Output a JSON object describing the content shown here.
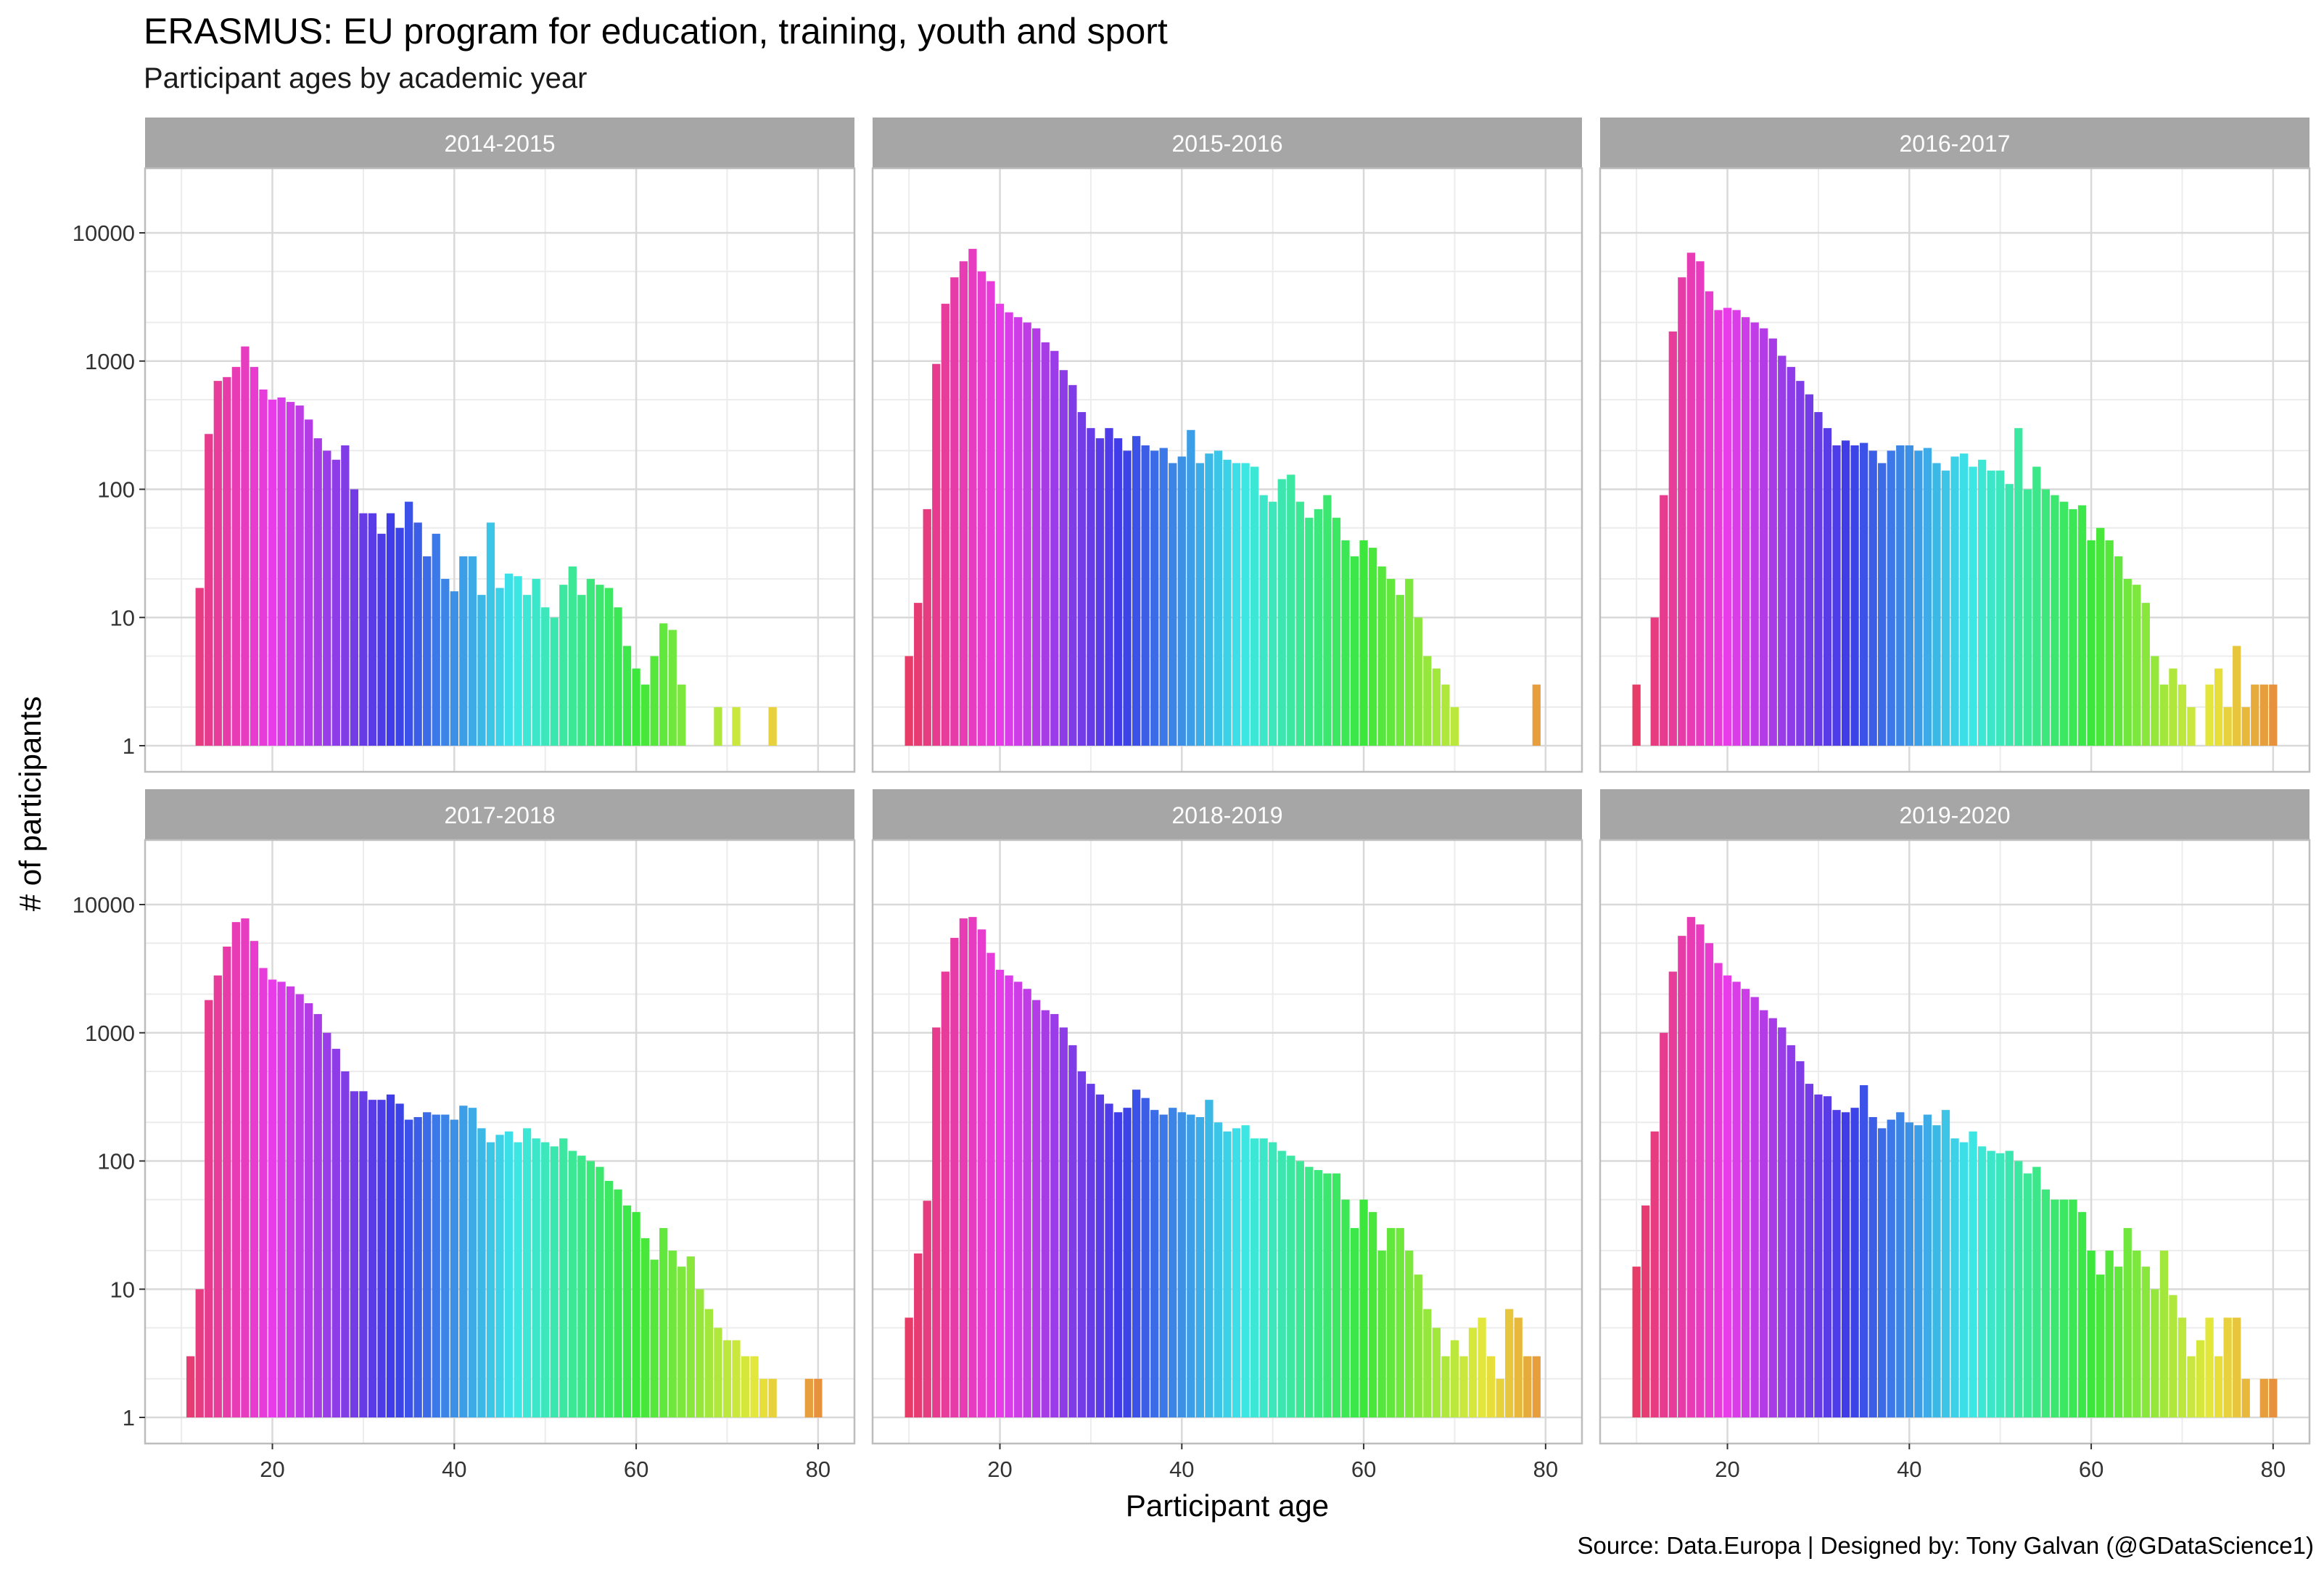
{
  "header": {
    "title": "ERASMUS: EU program for education, training, youth and sport",
    "subtitle": "Participant ages by academic year"
  },
  "caption": "Source: Data.Europa  |  Designed by: Tony Galvan (@GDataScience1)",
  "chart_data": {
    "type": "bar",
    "title": "ERASMUS: EU program for education, training, youth and sport",
    "subtitle": "Participant ages by academic year",
    "xlabel": "Participant age",
    "ylabel": "# of participants",
    "x_scale": "linear",
    "y_scale": "log10",
    "xlim": [
      6,
      84
    ],
    "ylim": [
      1,
      10000
    ],
    "x_ticks": [
      20,
      40,
      60,
      80
    ],
    "y_ticks": [
      1,
      10,
      100,
      1000,
      10000
    ],
    "grid": true,
    "color_encoding": "bar color varies continuously with participant age (hue gradient)",
    "facets": [
      {
        "label": "2014-2015",
        "x": [
          12,
          13,
          14,
          15,
          16,
          17,
          18,
          19,
          20,
          21,
          22,
          23,
          24,
          25,
          26,
          27,
          28,
          29,
          30,
          31,
          32,
          33,
          34,
          35,
          36,
          37,
          38,
          39,
          40,
          41,
          42,
          43,
          44,
          45,
          46,
          47,
          48,
          49,
          50,
          51,
          52,
          53,
          54,
          55,
          56,
          57,
          58,
          59,
          60,
          61,
          62,
          63,
          64,
          65,
          66,
          69,
          71,
          75
        ],
        "values": [
          17,
          270,
          700,
          750,
          900,
          1300,
          900,
          600,
          500,
          520,
          480,
          450,
          350,
          250,
          200,
          170,
          220,
          100,
          65,
          65,
          45,
          65,
          50,
          80,
          55,
          30,
          45,
          20,
          16,
          30,
          30,
          15,
          55,
          17,
          22,
          21,
          15,
          20,
          12,
          10,
          18,
          25,
          15,
          20,
          18,
          17,
          12,
          6,
          4,
          3,
          5,
          9,
          8,
          3,
          1,
          2,
          2,
          2
        ]
      },
      {
        "label": "2015-2016",
        "x": [
          10,
          11,
          12,
          13,
          14,
          15,
          16,
          17,
          18,
          19,
          20,
          21,
          22,
          23,
          24,
          25,
          26,
          27,
          28,
          29,
          30,
          31,
          32,
          33,
          34,
          35,
          36,
          37,
          38,
          39,
          40,
          41,
          42,
          43,
          44,
          45,
          46,
          47,
          48,
          49,
          50,
          51,
          52,
          53,
          54,
          55,
          56,
          57,
          58,
          59,
          60,
          61,
          62,
          63,
          64,
          65,
          66,
          67,
          68,
          69,
          70,
          71,
          72,
          73,
          74,
          75,
          76,
          79
        ],
        "values": [
          5,
          13,
          70,
          950,
          2800,
          4500,
          6000,
          7500,
          5000,
          4200,
          2800,
          2400,
          2200,
          2000,
          1800,
          1400,
          1200,
          850,
          650,
          400,
          300,
          250,
          300,
          250,
          200,
          260,
          220,
          200,
          210,
          160,
          180,
          290,
          160,
          190,
          200,
          170,
          160,
          160,
          150,
          90,
          80,
          120,
          130,
          80,
          60,
          70,
          90,
          60,
          40,
          30,
          40,
          35,
          25,
          20,
          15,
          20,
          10,
          5,
          4,
          3,
          2,
          1,
          1,
          1,
          1,
          1,
          1,
          3
        ]
      },
      {
        "label": "2016-2017",
        "x": [
          10,
          12,
          13,
          14,
          15,
          16,
          17,
          18,
          19,
          20,
          21,
          22,
          23,
          24,
          25,
          26,
          27,
          28,
          29,
          30,
          31,
          32,
          33,
          34,
          35,
          36,
          37,
          38,
          39,
          40,
          41,
          42,
          43,
          44,
          45,
          46,
          47,
          48,
          49,
          50,
          51,
          52,
          53,
          54,
          55,
          56,
          57,
          58,
          59,
          60,
          61,
          62,
          63,
          64,
          65,
          66,
          67,
          68,
          69,
          70,
          71,
          72,
          73,
          74,
          75,
          76,
          77,
          78,
          79,
          80
        ],
        "values": [
          3,
          10,
          90,
          1700,
          4500,
          7000,
          6000,
          3500,
          2500,
          2600,
          2500,
          2200,
          2000,
          1800,
          1500,
          1100,
          900,
          700,
          550,
          400,
          300,
          220,
          240,
          220,
          230,
          200,
          160,
          200,
          220,
          220,
          200,
          210,
          160,
          140,
          180,
          190,
          150,
          170,
          140,
          140,
          110,
          300,
          100,
          150,
          100,
          90,
          80,
          70,
          75,
          40,
          50,
          40,
          30,
          20,
          18,
          13,
          5,
          3,
          4,
          3,
          2,
          1,
          3,
          4,
          2,
          6,
          2,
          3,
          3,
          3
        ]
      },
      {
        "label": "2017-2018",
        "x": [
          11,
          12,
          13,
          14,
          15,
          16,
          17,
          18,
          19,
          20,
          21,
          22,
          23,
          24,
          25,
          26,
          27,
          28,
          29,
          30,
          31,
          32,
          33,
          34,
          35,
          36,
          37,
          38,
          39,
          40,
          41,
          42,
          43,
          44,
          45,
          46,
          47,
          48,
          49,
          50,
          51,
          52,
          53,
          54,
          55,
          56,
          57,
          58,
          59,
          60,
          61,
          62,
          63,
          64,
          65,
          66,
          67,
          68,
          69,
          70,
          71,
          72,
          73,
          74,
          75,
          76,
          77,
          78,
          79,
          80
        ],
        "values": [
          3,
          10,
          1800,
          2800,
          4700,
          7300,
          7800,
          5200,
          3200,
          2600,
          2500,
          2300,
          2000,
          1700,
          1400,
          1000,
          750,
          500,
          350,
          350,
          300,
          300,
          330,
          280,
          210,
          220,
          240,
          230,
          230,
          210,
          270,
          260,
          180,
          140,
          160,
          170,
          140,
          180,
          150,
          140,
          130,
          150,
          120,
          110,
          100,
          90,
          70,
          60,
          45,
          40,
          25,
          17,
          30,
          20,
          15,
          18,
          10,
          7,
          5,
          4,
          4,
          3,
          3,
          2,
          2,
          1,
          1,
          1,
          2,
          2
        ]
      },
      {
        "label": "2018-2019",
        "x": [
          10,
          11,
          12,
          13,
          14,
          15,
          16,
          17,
          18,
          19,
          20,
          21,
          22,
          23,
          24,
          25,
          26,
          27,
          28,
          29,
          30,
          31,
          32,
          33,
          34,
          35,
          36,
          37,
          38,
          39,
          40,
          41,
          42,
          43,
          44,
          45,
          46,
          47,
          48,
          49,
          50,
          51,
          52,
          53,
          54,
          55,
          56,
          57,
          58,
          59,
          60,
          61,
          62,
          63,
          64,
          65,
          66,
          67,
          68,
          69,
          70,
          71,
          72,
          73,
          74,
          75,
          76,
          77,
          78,
          79
        ],
        "values": [
          6,
          19,
          49,
          1100,
          3000,
          5500,
          7800,
          8000,
          6400,
          4200,
          3100,
          2800,
          2500,
          2200,
          1800,
          1500,
          1400,
          1100,
          800,
          500,
          400,
          330,
          280,
          240,
          260,
          360,
          310,
          250,
          230,
          260,
          240,
          230,
          220,
          300,
          200,
          170,
          180,
          190,
          150,
          150,
          140,
          120,
          110,
          100,
          90,
          85,
          80,
          80,
          50,
          30,
          50,
          40,
          20,
          30,
          30,
          20,
          13,
          7,
          5,
          3,
          4,
          3,
          5,
          6,
          3,
          2,
          7,
          6,
          3,
          3
        ]
      },
      {
        "label": "2019-2020",
        "x": [
          10,
          11,
          12,
          13,
          14,
          15,
          16,
          17,
          18,
          19,
          20,
          21,
          22,
          23,
          24,
          25,
          26,
          27,
          28,
          29,
          30,
          31,
          32,
          33,
          34,
          35,
          36,
          37,
          38,
          39,
          40,
          41,
          42,
          43,
          44,
          45,
          46,
          47,
          48,
          49,
          50,
          51,
          52,
          53,
          54,
          55,
          56,
          57,
          58,
          59,
          60,
          61,
          62,
          63,
          64,
          65,
          66,
          67,
          68,
          69,
          70,
          71,
          72,
          73,
          74,
          75,
          76,
          77,
          79,
          80
        ],
        "values": [
          15,
          45,
          170,
          1000,
          3000,
          5700,
          8000,
          7000,
          5000,
          3500,
          2800,
          2500,
          2200,
          1900,
          1500,
          1300,
          1100,
          800,
          600,
          400,
          330,
          320,
          250,
          240,
          260,
          390,
          220,
          180,
          210,
          240,
          200,
          190,
          230,
          190,
          250,
          150,
          140,
          170,
          130,
          120,
          115,
          120,
          100,
          80,
          90,
          60,
          50,
          50,
          50,
          40,
          20,
          13,
          20,
          15,
          30,
          20,
          15,
          10,
          20,
          9,
          6,
          3,
          4,
          6,
          3,
          6,
          6,
          2,
          2,
          2
        ]
      }
    ]
  }
}
